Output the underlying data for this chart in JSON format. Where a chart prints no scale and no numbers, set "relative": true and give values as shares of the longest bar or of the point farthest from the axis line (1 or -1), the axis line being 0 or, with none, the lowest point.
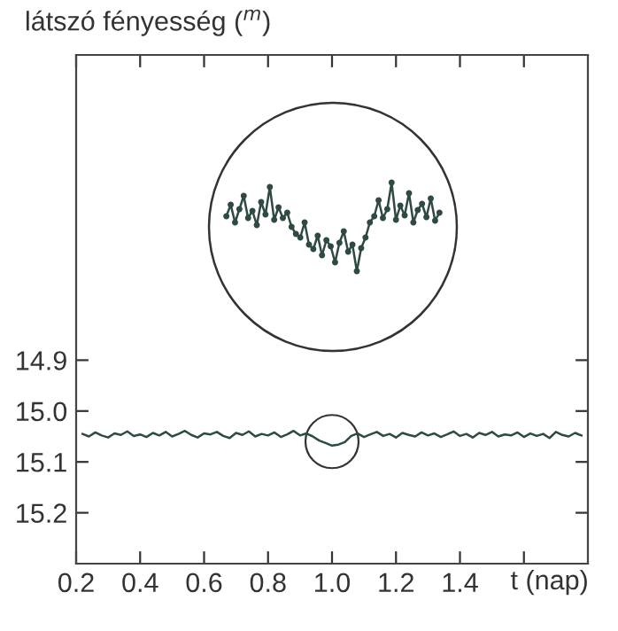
{
  "chart_data": [
    {
      "type": "line",
      "ylabel": "látszó fényesség ($^{m}$)",
      "xlabel": "t (nap)",
      "x": [
        0.22,
        0.24,
        0.26,
        0.28,
        0.3,
        0.32,
        0.34,
        0.36,
        0.38,
        0.4,
        0.42,
        0.44,
        0.46,
        0.48,
        0.5,
        0.52,
        0.54,
        0.56,
        0.58,
        0.6,
        0.62,
        0.64,
        0.66,
        0.68,
        0.7,
        0.72,
        0.74,
        0.76,
        0.78,
        0.8,
        0.82,
        0.84,
        0.86,
        0.88,
        0.9,
        0.92,
        0.94,
        0.96,
        0.98,
        1.0,
        1.02,
        1.04,
        1.06,
        1.08,
        1.1,
        1.12,
        1.14,
        1.16,
        1.18,
        1.2,
        1.22,
        1.24,
        1.26,
        1.28,
        1.3,
        1.32,
        1.34,
        1.36,
        1.38,
        1.4,
        1.42,
        1.44,
        1.46,
        1.48,
        1.5,
        1.52,
        1.54,
        1.56,
        1.58,
        1.6,
        1.62,
        1.64,
        1.66,
        1.68,
        1.7,
        1.72,
        1.74,
        1.76,
        1.78
      ],
      "series": [
        {
          "color": "#2f4a45",
          "values": [
            15.045,
            15.05,
            15.042,
            15.048,
            15.052,
            15.044,
            15.047,
            15.04,
            15.049,
            15.046,
            15.051,
            15.043,
            15.048,
            15.041,
            15.05,
            15.045,
            15.039,
            15.047,
            15.052,
            15.044,
            15.046,
            15.041,
            15.049,
            15.053,
            15.043,
            15.047,
            15.04,
            15.05,
            15.045,
            15.048,
            15.042,
            15.051,
            15.046,
            15.039,
            15.048,
            15.044,
            15.05,
            15.058,
            15.063,
            15.068,
            15.066,
            15.061,
            15.049,
            15.044,
            15.051,
            15.046,
            15.041,
            15.049,
            15.045,
            15.052,
            15.043,
            15.047,
            15.05,
            15.042,
            15.048,
            15.044,
            15.051,
            15.046,
            15.04,
            15.049,
            15.045,
            15.052,
            15.043,
            15.047,
            15.041,
            15.05,
            15.046,
            15.048,
            15.042,
            15.051,
            15.044,
            15.049,
            15.045,
            15.053,
            15.041,
            15.047,
            15.05,
            15.043,
            15.048
          ]
        }
      ],
      "xlim": [
        0.2,
        1.8
      ],
      "ylim": [
        15.3,
        14.3
      ],
      "xticks": [
        0.2,
        0.4,
        0.6,
        0.8,
        {
          "value": 1,
          "label": "1.0"
        },
        1.2,
        1.4,
        {
          "value": 1.6,
          "label": null
        }
      ],
      "yticks": [
        14.9,
        {
          "value": 15,
          "label": "15.0"
        },
        15.1,
        15.2
      ],
      "marker": "none",
      "line_style": "solid",
      "grid": false,
      "legend": false
    },
    {
      "type": "line",
      "relative": true,
      "marker": "circle",
      "line_style": "solid",
      "categories": [
        null,
        null,
        null,
        null,
        null,
        null,
        null,
        null,
        null,
        null,
        null,
        null,
        null,
        null,
        null,
        null,
        null,
        null,
        null,
        null,
        null,
        null,
        null,
        null,
        null,
        null,
        null,
        null,
        null,
        null,
        null,
        null,
        null,
        null,
        null,
        null,
        null,
        null,
        null,
        null,
        null,
        null,
        null,
        null,
        null,
        null,
        null,
        null,
        null,
        null
      ],
      "series": [
        {
          "color": "#2f4a45",
          "values": [
            0.62,
            0.75,
            0.55,
            0.7,
            0.85,
            0.6,
            0.68,
            0.52,
            0.78,
            0.64,
            0.95,
            0.58,
            0.72,
            0.6,
            0.66,
            0.5,
            0.42,
            0.38,
            0.55,
            0.3,
            0.25,
            0.4,
            0.18,
            0.35,
            0.28,
            0.1,
            0.32,
            0.45,
            0.22,
            0.3,
            0.0,
            0.26,
            0.38,
            0.55,
            0.62,
            0.8,
            0.6,
            0.7,
            1.0,
            0.58,
            0.74,
            0.63,
            0.88,
            0.55,
            0.69,
            0.76,
            0.61,
            0.82,
            0.57,
            0.66
          ]
        }
      ],
      "grid": false,
      "legend": false
    }
  ]
}
